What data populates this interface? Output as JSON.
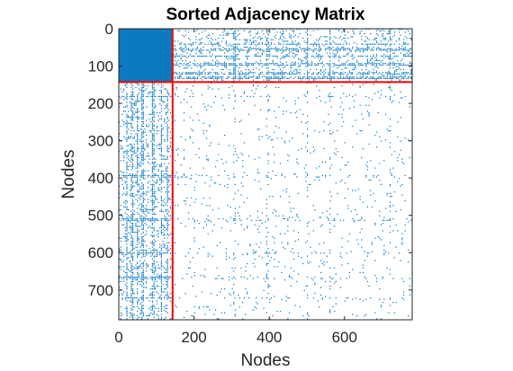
{
  "chart_data": {
    "type": "heatmap",
    "subtype": "spy-plot",
    "title": "Sorted Adjacency Matrix",
    "xlabel": "Nodes",
    "ylabel": "Nodes",
    "xlim": [
      0,
      780
    ],
    "ylim": [
      780,
      0
    ],
    "x_ticks": [
      0,
      200,
      400,
      600
    ],
    "y_ticks": [
      0,
      100,
      200,
      300,
      400,
      500,
      600,
      700
    ],
    "x_tick_labels": [
      "0",
      "200",
      "400",
      "600"
    ],
    "y_tick_labels": [
      "0",
      "100",
      "200",
      "300",
      "400",
      "500",
      "600",
      "700"
    ],
    "matrix_size": 780,
    "community_boundary": 143,
    "marker_color": "#0072bd",
    "boundary_color": "#ff0000",
    "density": {
      "dense_block": 0.95,
      "cross_block": 0.16,
      "sparse_block": 0.035
    }
  }
}
